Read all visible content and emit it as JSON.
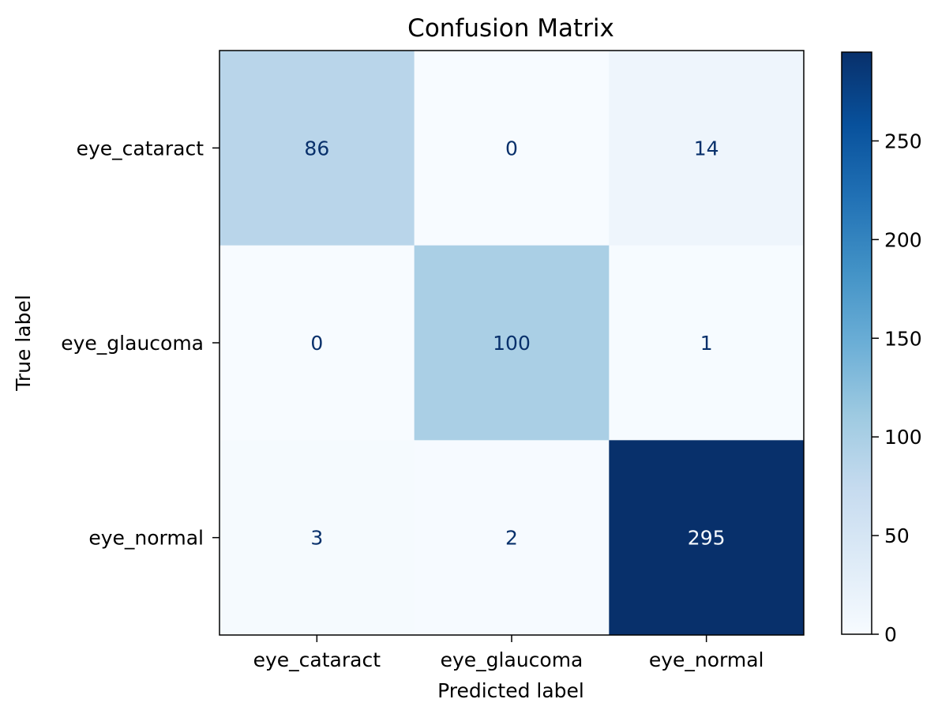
{
  "chart_data": {
    "type": "heatmap",
    "title": "Confusion Matrix",
    "xlabel": "Predicted label",
    "ylabel": "True label",
    "x_categories": [
      "eye_cataract",
      "eye_glaucoma",
      "eye_normal"
    ],
    "y_categories": [
      "eye_cataract",
      "eye_glaucoma",
      "eye_normal"
    ],
    "values": [
      [
        86,
        0,
        14
      ],
      [
        0,
        100,
        1
      ],
      [
        3,
        2,
        295
      ]
    ],
    "colormap": "Blues",
    "colorbar": {
      "range": [
        0,
        295
      ],
      "ticks": [
        0,
        50,
        100,
        150,
        200,
        250
      ]
    }
  }
}
